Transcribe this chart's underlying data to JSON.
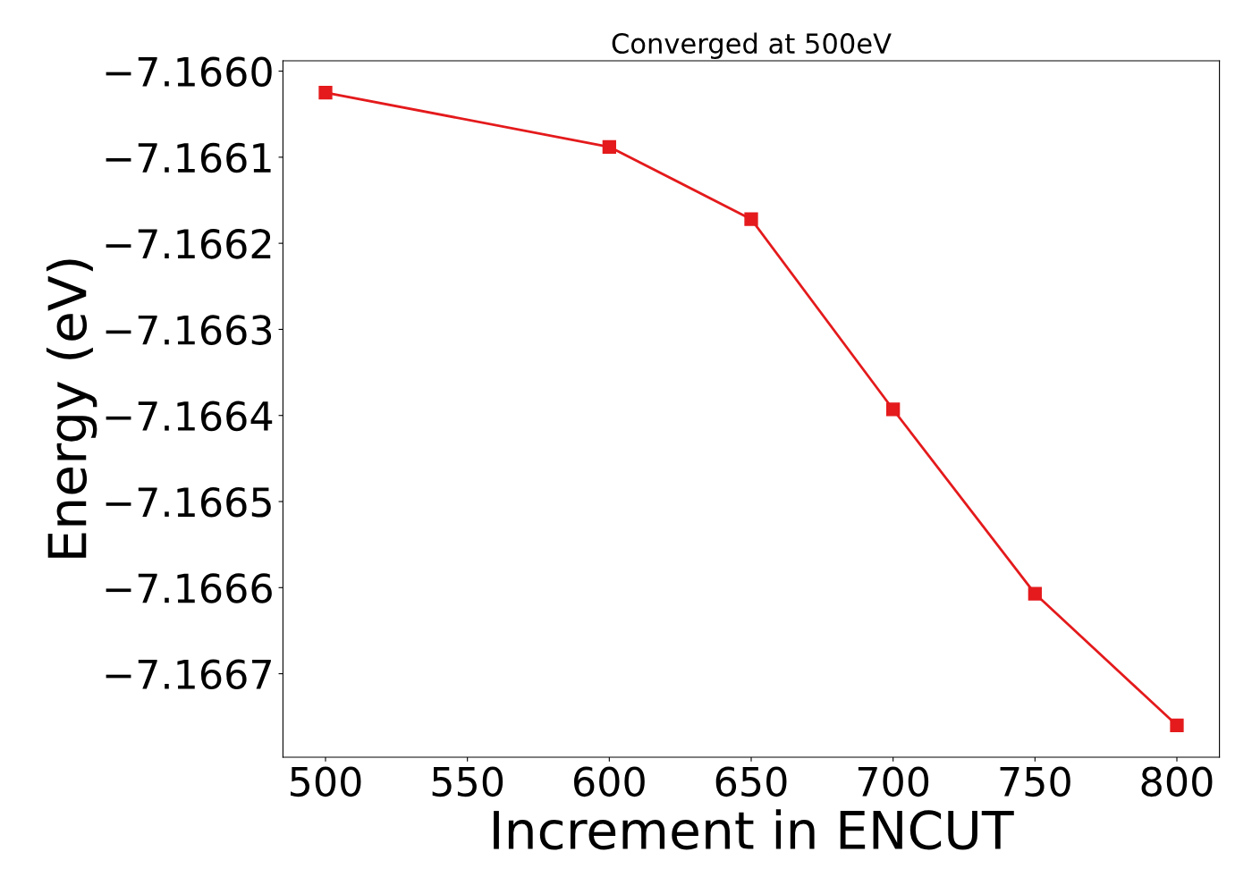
{
  "chart_data": {
    "type": "line",
    "title": "Converged at 500eV",
    "xlabel": "Increment in ENCUT",
    "ylabel": "Energy (eV)",
    "x": [
      500,
      600,
      650,
      700,
      750,
      800
    ],
    "series": [
      {
        "color": "#e41a1c",
        "values": [
          -7.166025,
          -7.166088,
          -7.166172,
          -7.166393,
          -7.166607,
          -7.16676
        ]
      }
    ],
    "xlim": [
      485,
      815
    ],
    "xticks": [
      500,
      550,
      600,
      650,
      700,
      750,
      800
    ],
    "ylim": [
      -7.166797,
      -7.165988
    ],
    "yticks": [
      {
        "value": -7.1667,
        "label": "−7.1667"
      },
      {
        "value": -7.1666,
        "label": "−7.1666"
      },
      {
        "value": -7.1665,
        "label": "−7.1665"
      },
      {
        "value": -7.1664,
        "label": "−7.1664"
      },
      {
        "value": -7.1663,
        "label": "−7.1663"
      },
      {
        "value": -7.1662,
        "label": "−7.1662"
      },
      {
        "value": -7.1661,
        "label": "−7.1661"
      },
      {
        "value": -7.166,
        "label": "−7.1660"
      }
    ],
    "marker": "square",
    "line_style": "solid",
    "grid": false,
    "legend": false
  }
}
